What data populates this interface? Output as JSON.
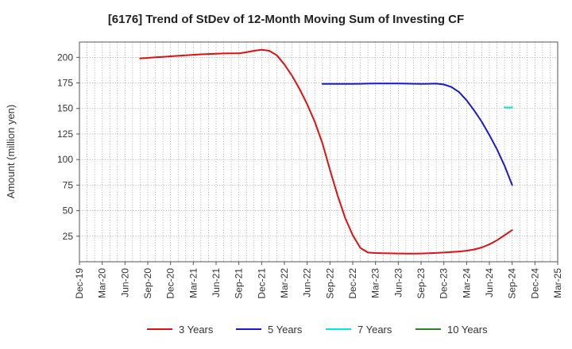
{
  "chart_data": {
    "type": "line",
    "title": "[6176]  Trend of StDev of 12-Month Moving Sum of Investing CF",
    "xlabel": "",
    "ylabel": "Amount (million yen)",
    "x_ticks": [
      "Dec-19",
      "Mar-20",
      "Jun-20",
      "Sep-20",
      "Dec-20",
      "Mar-21",
      "Jun-21",
      "Sep-21",
      "Dec-21",
      "Mar-22",
      "Jun-22",
      "Sep-22",
      "Dec-22",
      "Mar-23",
      "Jun-23",
      "Sep-23",
      "Dec-23",
      "Mar-24",
      "Jun-24",
      "Sep-24",
      "Dec-24",
      "Mar-25"
    ],
    "y_ticks": [
      25,
      50,
      75,
      100,
      125,
      150,
      175,
      200
    ],
    "ylim": [
      0,
      215
    ],
    "grid": true,
    "legend_position": "bottom",
    "series": [
      {
        "name": "3 Years",
        "color": "#dd1111",
        "points": [
          [
            "Aug-20",
            199
          ],
          [
            "Sep-20",
            199.5
          ],
          [
            "Oct-20",
            200
          ],
          [
            "Nov-20",
            200.5
          ],
          [
            "Dec-20",
            201
          ],
          [
            "Jan-21",
            201.5
          ],
          [
            "Feb-21",
            202
          ],
          [
            "Mar-21",
            202.5
          ],
          [
            "Apr-21",
            203
          ],
          [
            "May-21",
            203.3
          ],
          [
            "Jun-21",
            203.6
          ],
          [
            "Jul-21",
            203.8
          ],
          [
            "Aug-21",
            204
          ],
          [
            "Sep-21",
            204
          ],
          [
            "Oct-21",
            205
          ],
          [
            "Nov-21",
            206.5
          ],
          [
            "Dec-21",
            207.5
          ],
          [
            "Jan-22",
            206.5
          ],
          [
            "Feb-22",
            202
          ],
          [
            "Mar-22",
            193
          ],
          [
            "Apr-22",
            182
          ],
          [
            "May-22",
            169
          ],
          [
            "Jun-22",
            154
          ],
          [
            "Jul-22",
            137
          ],
          [
            "Aug-22",
            116
          ],
          [
            "Sep-22",
            90
          ],
          [
            "Oct-22",
            65
          ],
          [
            "Nov-22",
            43
          ],
          [
            "Dec-22",
            26
          ],
          [
            "Jan-23",
            13.5
          ],
          [
            "Feb-23",
            9
          ],
          [
            "Mar-23",
            8.5
          ],
          [
            "Apr-23",
            8.3
          ],
          [
            "May-23",
            8.2
          ],
          [
            "Jun-23",
            8.1
          ],
          [
            "Jul-23",
            8
          ],
          [
            "Aug-23",
            8
          ],
          [
            "Sep-23",
            8.1
          ],
          [
            "Oct-23",
            8.3
          ],
          [
            "Nov-23",
            8.6
          ],
          [
            "Dec-23",
            9
          ],
          [
            "Jan-24",
            9.5
          ],
          [
            "Feb-24",
            10
          ],
          [
            "Mar-24",
            10.8
          ],
          [
            "Apr-24",
            12
          ],
          [
            "May-24",
            14
          ],
          [
            "Jun-24",
            17
          ],
          [
            "Jul-24",
            21
          ],
          [
            "Aug-24",
            26
          ],
          [
            "Sep-24",
            31
          ]
        ]
      },
      {
        "name": "5 Years",
        "color": "#1a1acc",
        "points": [
          [
            "Aug-22",
            174
          ],
          [
            "Sep-22",
            174
          ],
          [
            "Oct-22",
            174
          ],
          [
            "Nov-22",
            174.1
          ],
          [
            "Dec-22",
            174.1
          ],
          [
            "Jan-23",
            174.2
          ],
          [
            "Feb-23",
            174.3
          ],
          [
            "Mar-23",
            174.4
          ],
          [
            "Apr-23",
            174.4
          ],
          [
            "May-23",
            174.4
          ],
          [
            "Jun-23",
            174.4
          ],
          [
            "Jul-23",
            174.3
          ],
          [
            "Aug-23",
            174.2
          ],
          [
            "Sep-23",
            174
          ],
          [
            "Oct-23",
            174.2
          ],
          [
            "Nov-23",
            174.3
          ],
          [
            "Dec-23",
            173.5
          ],
          [
            "Jan-24",
            171
          ],
          [
            "Feb-24",
            166
          ],
          [
            "Mar-24",
            158
          ],
          [
            "Apr-24",
            148
          ],
          [
            "May-24",
            137
          ],
          [
            "Jun-24",
            124
          ],
          [
            "Jul-24",
            110
          ],
          [
            "Aug-24",
            94
          ],
          [
            "Sep-24",
            75
          ]
        ]
      },
      {
        "name": "7 Years",
        "color": "#00e5e5",
        "points": [
          [
            "Aug-24",
            151
          ],
          [
            "Sep-24",
            151
          ]
        ]
      },
      {
        "name": "10 Years",
        "color": "#228822",
        "points": []
      }
    ]
  }
}
